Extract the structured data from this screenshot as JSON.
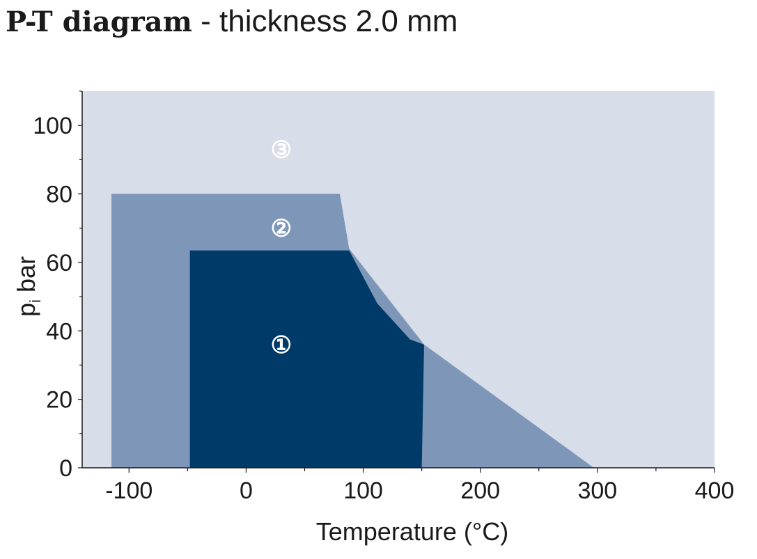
{
  "title": {
    "bold": "P-T diagram",
    "separator": " - ",
    "rest": "thickness 2.0 mm"
  },
  "chart_data": {
    "type": "area",
    "xlabel": "Temperature (°C)",
    "ylabel_main": "p",
    "ylabel_sub": "i",
    "ylabel_unit": "bar",
    "xlim": [
      -140,
      400
    ],
    "ylim": [
      0,
      110
    ],
    "x_ticks": [
      -100,
      0,
      100,
      200,
      300,
      400
    ],
    "y_ticks": [
      0,
      20,
      40,
      60,
      80,
      100
    ],
    "background_color": "#d7dde9",
    "regions": [
      {
        "label": "③",
        "color": "#d7dde9",
        "label_color": "#ffffff",
        "label_at": [
          30,
          93
        ],
        "polygon": []
      },
      {
        "label": "②",
        "color": "#7e97b9",
        "label_color": "#ffffff",
        "label_at": [
          30,
          70
        ],
        "polygon": [
          [
            -115,
            0
          ],
          [
            -115,
            80
          ],
          [
            80,
            80
          ],
          [
            88,
            64
          ],
          [
            152,
            36
          ],
          [
            297,
            0
          ]
        ]
      },
      {
        "label": "①",
        "color": "#003a69",
        "label_color": "#ffffff",
        "label_at": [
          30,
          36
        ],
        "polygon": [
          [
            -48,
            0
          ],
          [
            -48,
            63.5
          ],
          [
            88,
            63.5
          ],
          [
            112,
            48
          ],
          [
            140,
            37.5
          ],
          [
            152,
            36
          ],
          [
            150,
            0
          ]
        ]
      }
    ]
  }
}
